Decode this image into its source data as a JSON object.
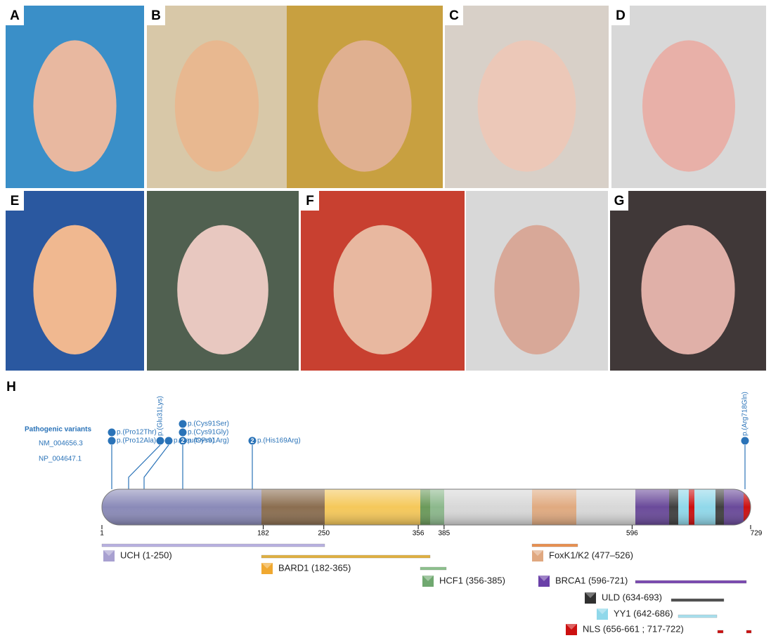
{
  "panels": [
    "A",
    "B",
    "C",
    "D",
    "E",
    "F",
    "G"
  ],
  "diagram": {
    "label": "H",
    "heading": "Pathogenic variants",
    "transcripts": [
      "NM_004656.3",
      "NP_004647.1"
    ],
    "variants": [
      {
        "label": "p.(Pro12Thr)"
      },
      {
        "label": "p.(Pro12Ala)"
      },
      {
        "label": "p.(Glu31Lys)"
      },
      {
        "label": "p.(Leu49Pro)"
      },
      {
        "label": "p.(Cys91Ser)"
      },
      {
        "label": "p.(Cys91Gly)"
      },
      {
        "label": "p.(Cys91Arg)",
        "count": 2
      },
      {
        "label": "p.(His169Arg)",
        "count": 2
      },
      {
        "label": "p.(Arg718Gln)"
      }
    ],
    "ticks": [
      1,
      182,
      250,
      356,
      385,
      596,
      729
    ],
    "domains": [
      "UCH (1-250)",
      "BARD1 (182-365)",
      "HCF1 (356-385)",
      "FoxK1/K2 (477–526)",
      "BRCA1 (596-721)",
      "ULD (634-693)",
      "YY1 (642-686)",
      "NLS (656-661 ; 717-722)"
    ]
  }
}
